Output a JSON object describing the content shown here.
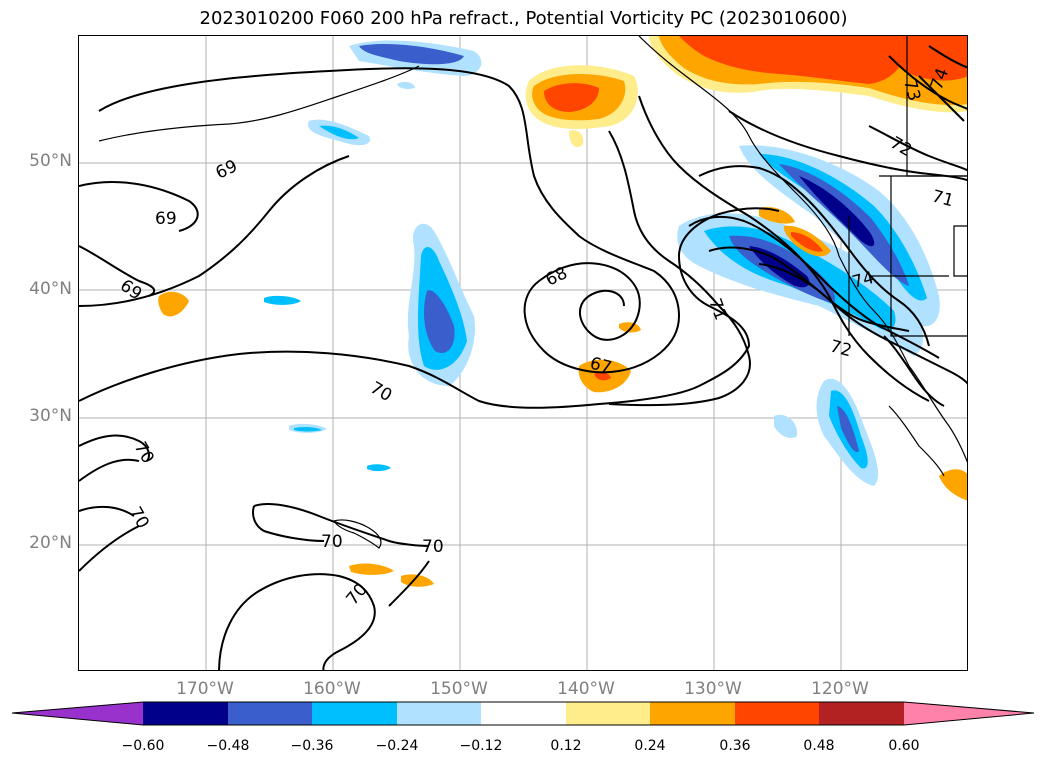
{
  "title": "2023010200 F060 200 hPa refract., Potential Vorticity PC (2023010600)",
  "lat_labels": [
    "50°N",
    "40°N",
    "30°N",
    "20°N"
  ],
  "lon_labels": [
    "170°W",
    "160°W",
    "150°W",
    "140°W",
    "130°W",
    "120°W"
  ],
  "contour_labels": [
    "69",
    "69",
    "69",
    "68",
    "67",
    "70",
    "70",
    "70",
    "70",
    "70",
    "70",
    "71",
    "71",
    "72",
    "72",
    "73",
    "74",
    "74"
  ],
  "colorbar": {
    "ticks": [
      "−0.60",
      "−0.48",
      "−0.36",
      "−0.24",
      "−0.12",
      "0.12",
      "0.24",
      "0.36",
      "0.48",
      "0.60"
    ],
    "colors": [
      "#9932cc",
      "#00008b",
      "#3a5fcd",
      "#00bfff",
      "#b0e2ff",
      "#ffffff",
      "#ffec8b",
      "#ffa500",
      "#ff4500",
      "#b22222",
      "#ff82ab"
    ]
  },
  "colors": {
    "neg_strong": "#00008b",
    "neg_mid": "#3a5fcd",
    "neg_light": "#00bfff",
    "neg_pale": "#b0e2ff",
    "pos_pale": "#ffec8b",
    "pos_light": "#ffa500",
    "pos_mid": "#ff4500"
  }
}
